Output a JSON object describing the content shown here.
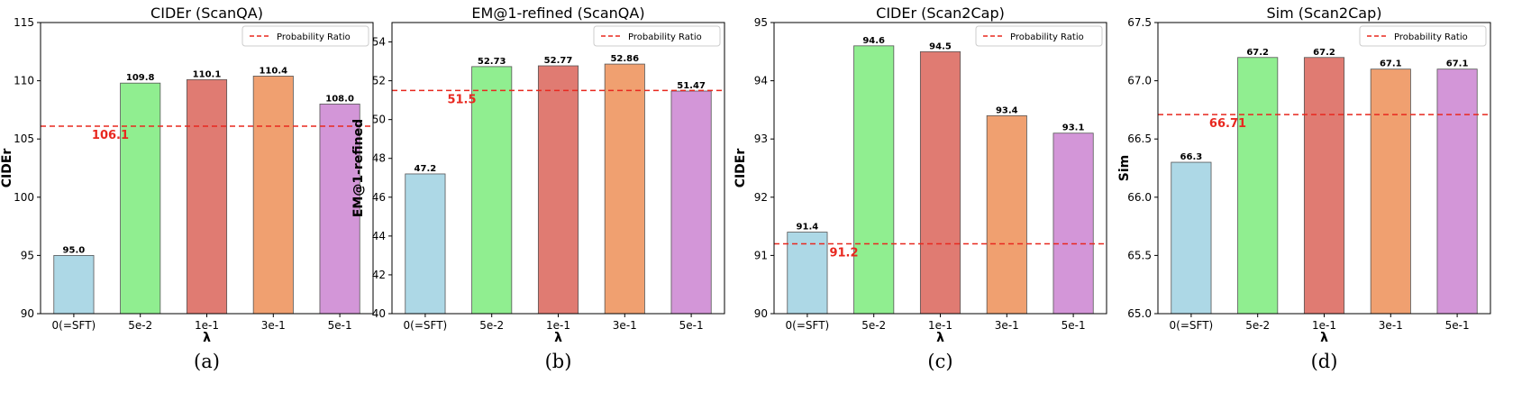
{
  "colors": {
    "bars": [
      "#add8e6",
      "#90ee90",
      "#e07b72",
      "#f0a070",
      "#d396d8"
    ],
    "ref_line": "#e8281f",
    "bar_edge": "#555555"
  },
  "chart_data": [
    {
      "type": "bar",
      "title": "CIDEr (ScanQA)",
      "xlabel": "λ",
      "ylabel": "CIDEr",
      "categories": [
        "0(=SFT)",
        "5e-2",
        "1e-1",
        "3e-1",
        "5e-1"
      ],
      "values": [
        95.0,
        109.8,
        110.1,
        110.4,
        108.0
      ],
      "value_labels": [
        "95.0",
        "109.8",
        "110.1",
        "110.4",
        "108.0"
      ],
      "ylim": [
        90,
        115
      ],
      "yticks": [
        90,
        95,
        100,
        105,
        110,
        115
      ],
      "ytick_labels": [
        "90",
        "95",
        "100",
        "105",
        "110",
        "115"
      ],
      "reference": {
        "name": "Probability Ratio",
        "value": 106.1,
        "label": "106.1"
      },
      "legend": "top-right",
      "caption": "(a)"
    },
    {
      "type": "bar",
      "title": "EM@1-refined (ScanQA)",
      "xlabel": "λ",
      "ylabel": "EM@1-refined",
      "categories": [
        "0(=SFT)",
        "5e-2",
        "1e-1",
        "3e-1",
        "5e-1"
      ],
      "values": [
        47.2,
        52.73,
        52.77,
        52.86,
        51.47
      ],
      "value_labels": [
        "47.2",
        "52.73",
        "52.77",
        "52.86",
        "51.47"
      ],
      "ylim": [
        40,
        55
      ],
      "yticks": [
        40,
        42,
        44,
        46,
        48,
        50,
        52,
        54
      ],
      "ytick_labels": [
        "40",
        "42",
        "44",
        "46",
        "48",
        "50",
        "52",
        "54"
      ],
      "reference": {
        "name": "Probability Ratio",
        "value": 51.5,
        "label": "51.5"
      },
      "legend": "top-right",
      "caption": "(b)"
    },
    {
      "type": "bar",
      "title": "CIDEr (Scan2Cap)",
      "xlabel": "λ",
      "ylabel": "CIDEr",
      "categories": [
        "0(=SFT)",
        "5e-2",
        "1e-1",
        "3e-1",
        "5e-1"
      ],
      "values": [
        91.4,
        94.6,
        94.5,
        93.4,
        93.1
      ],
      "value_labels": [
        "91.4",
        "94.6",
        "94.5",
        "93.4",
        "93.1"
      ],
      "ylim": [
        90,
        95
      ],
      "yticks": [
        90,
        91,
        92,
        93,
        94,
        95
      ],
      "ytick_labels": [
        "90",
        "91",
        "92",
        "93",
        "94",
        "95"
      ],
      "reference": {
        "name": "Probability Ratio",
        "value": 91.2,
        "label": "91.2"
      },
      "legend": "top-right",
      "caption": "(c)"
    },
    {
      "type": "bar",
      "title": "Sim (Scan2Cap)",
      "xlabel": "λ",
      "ylabel": "Sim",
      "categories": [
        "0(=SFT)",
        "5e-2",
        "1e-1",
        "3e-1",
        "5e-1"
      ],
      "values": [
        66.3,
        67.2,
        67.2,
        67.1,
        67.1
      ],
      "value_labels": [
        "66.3",
        "67.2",
        "67.2",
        "67.1",
        "67.1"
      ],
      "ylim": [
        65.0,
        67.5
      ],
      "yticks": [
        65.0,
        65.5,
        66.0,
        66.5,
        67.0,
        67.5
      ],
      "ytick_labels": [
        "65.0",
        "65.5",
        "66.0",
        "66.5",
        "67.0",
        "67.5"
      ],
      "reference": {
        "name": "Probability Ratio",
        "value": 66.71,
        "label": "66.71"
      },
      "legend": "top-right",
      "caption": "(d)"
    }
  ]
}
